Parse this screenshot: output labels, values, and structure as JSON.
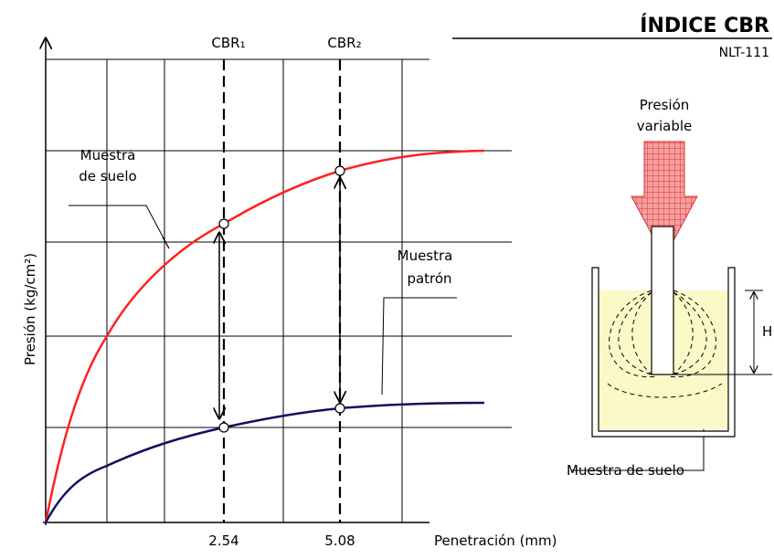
{
  "header": {
    "title": "ÍNDICE CBR",
    "subtitle": "NLT-111"
  },
  "graph": {
    "y_label": "Presión (kg/cm²)",
    "x_label": "Penetración (mm)",
    "x_ticks": [
      "2.54",
      "5.08"
    ],
    "markers": [
      "CBR₁",
      "CBR₂"
    ],
    "annotations": [
      {
        "lines": [
          "Muestra",
          "de suelo"
        ]
      },
      {
        "lines": [
          "Muestra",
          "patrón"
        ]
      }
    ]
  },
  "apparatus": {
    "load_label": {
      "lines": [
        "Presión",
        "variable"
      ]
    },
    "height_label": "H",
    "sample_label": "Muestra de suelo"
  }
}
